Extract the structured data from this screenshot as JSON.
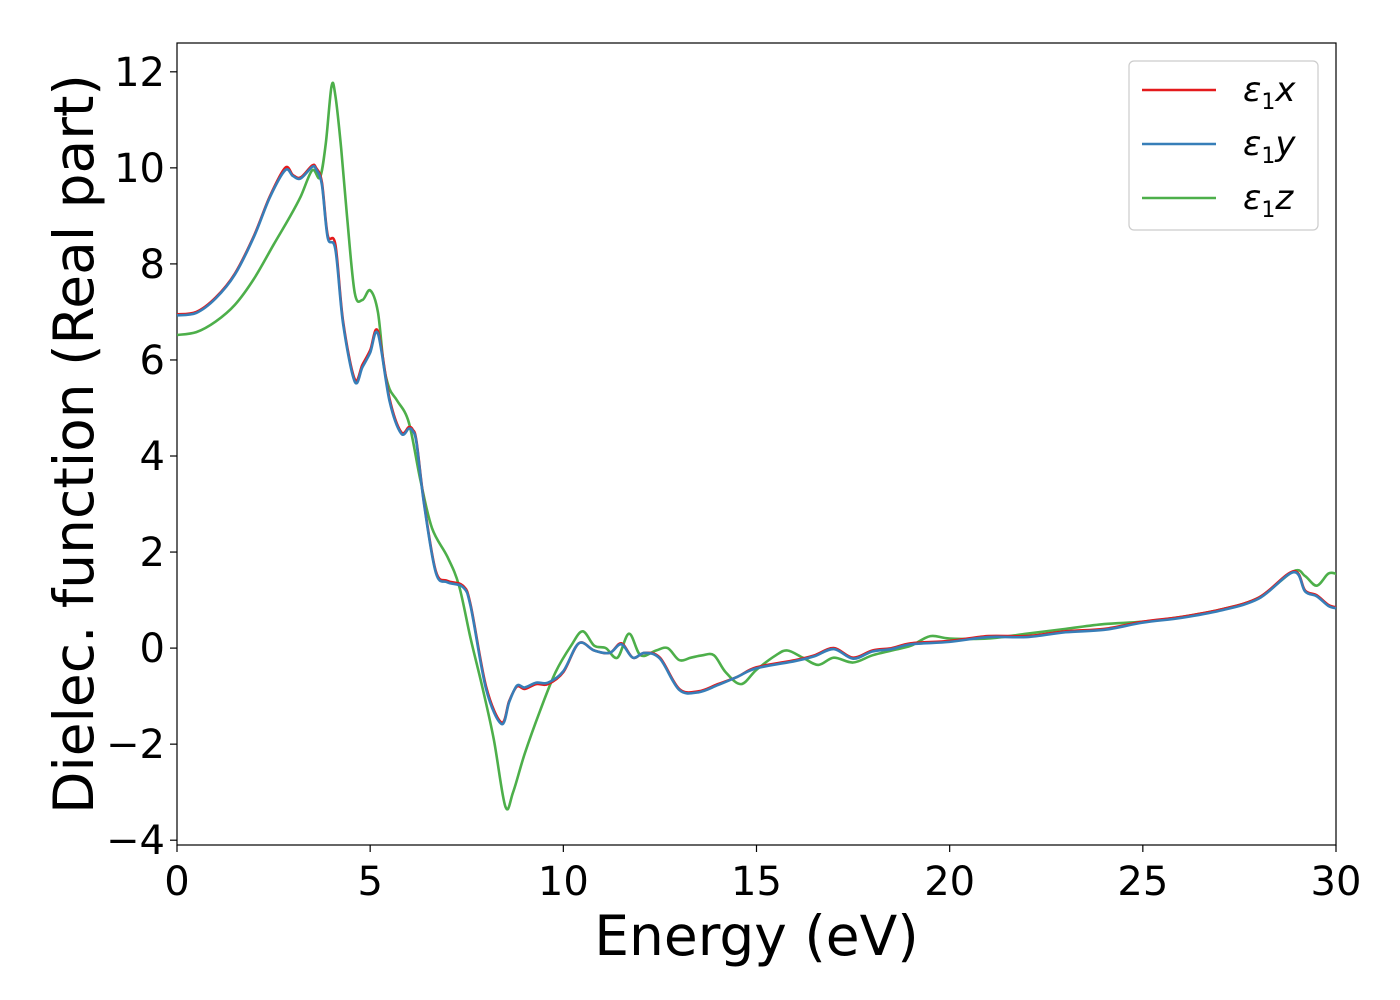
{
  "chart_data": {
    "type": "line",
    "xlabel": "Energy (eV)",
    "ylabel": "Dielec. function (Real part)",
    "xlim": [
      0,
      30
    ],
    "ylim": [
      -4.1,
      12.6
    ],
    "xticks": [
      0,
      5,
      10,
      15,
      20,
      25,
      30
    ],
    "yticks": [
      -4,
      -2,
      0,
      2,
      4,
      6,
      8,
      10,
      12
    ],
    "grid": false,
    "legend_position": "top-right",
    "series": [
      {
        "name": "ε1x",
        "symbol": "ε",
        "subscript": "1",
        "suffix": "x",
        "color": "#e41a1c",
        "x": [
          0,
          0.5,
          1.0,
          1.5,
          2.0,
          2.4,
          2.8,
          3.0,
          3.2,
          3.5,
          3.6,
          3.75,
          3.9,
          4.1,
          4.3,
          4.6,
          4.8,
          5.0,
          5.2,
          5.5,
          5.8,
          6.0,
          6.1,
          6.2,
          6.4,
          6.7,
          7.0,
          7.4,
          7.6,
          8.0,
          8.4,
          8.6,
          8.8,
          9.0,
          9.3,
          9.6,
          10.0,
          10.4,
          10.8,
          11.2,
          11.5,
          11.8,
          12.1,
          12.5,
          13.0,
          13.5,
          14.0,
          14.5,
          15.0,
          16.0,
          16.5,
          17.0,
          17.5,
          18.0,
          18.5,
          19.0,
          20.0,
          21.0,
          22.0,
          23.0,
          24.0,
          25.0,
          26.0,
          27.0,
          28.0,
          28.9,
          29.2,
          29.5,
          29.8,
          30.0
        ],
        "y": [
          6.95,
          7.0,
          7.3,
          7.8,
          8.6,
          9.4,
          10.0,
          9.85,
          9.8,
          10.05,
          10.0,
          9.7,
          8.6,
          8.4,
          6.8,
          5.6,
          5.9,
          6.2,
          6.6,
          5.2,
          4.5,
          4.6,
          4.55,
          4.3,
          3.0,
          1.6,
          1.4,
          1.3,
          0.9,
          -0.8,
          -1.55,
          -1.1,
          -0.8,
          -0.85,
          -0.75,
          -0.75,
          -0.5,
          0.1,
          -0.05,
          -0.1,
          0.1,
          -0.2,
          -0.1,
          -0.2,
          -0.85,
          -0.9,
          -0.75,
          -0.6,
          -0.4,
          -0.25,
          -0.15,
          0.0,
          -0.2,
          -0.05,
          0.0,
          0.1,
          0.15,
          0.25,
          0.25,
          0.35,
          0.4,
          0.55,
          0.65,
          0.8,
          1.05,
          1.6,
          1.2,
          1.1,
          0.9,
          0.85
        ]
      },
      {
        "name": "ε1y",
        "symbol": "ε",
        "subscript": "1",
        "suffix": "y",
        "color": "#377eb8",
        "x": [
          0,
          0.5,
          1.0,
          1.5,
          2.0,
          2.4,
          2.8,
          3.0,
          3.2,
          3.5,
          3.6,
          3.75,
          3.9,
          4.1,
          4.3,
          4.6,
          4.8,
          5.0,
          5.2,
          5.5,
          5.8,
          6.0,
          6.1,
          6.2,
          6.4,
          6.7,
          7.0,
          7.4,
          7.6,
          8.0,
          8.4,
          8.6,
          8.8,
          9.0,
          9.3,
          9.6,
          10.0,
          10.4,
          10.8,
          11.2,
          11.5,
          11.8,
          12.1,
          12.5,
          13.0,
          13.5,
          14.0,
          14.5,
          15.0,
          16.0,
          16.5,
          17.0,
          17.5,
          18.0,
          18.5,
          19.0,
          20.0,
          21.0,
          22.0,
          23.0,
          24.0,
          25.0,
          26.0,
          27.0,
          28.0,
          28.9,
          29.2,
          29.5,
          29.8,
          30.0
        ],
        "y": [
          6.93,
          6.98,
          7.28,
          7.78,
          8.58,
          9.38,
          9.95,
          9.83,
          9.78,
          10.02,
          9.97,
          9.65,
          8.55,
          8.3,
          6.75,
          5.55,
          5.85,
          6.15,
          6.55,
          5.15,
          4.47,
          4.57,
          4.52,
          4.27,
          2.97,
          1.57,
          1.37,
          1.27,
          0.87,
          -0.85,
          -1.58,
          -1.12,
          -0.78,
          -0.82,
          -0.72,
          -0.72,
          -0.48,
          0.1,
          -0.05,
          -0.1,
          0.08,
          -0.2,
          -0.1,
          -0.22,
          -0.87,
          -0.92,
          -0.77,
          -0.6,
          -0.42,
          -0.27,
          -0.17,
          -0.02,
          -0.22,
          -0.07,
          -0.02,
          0.08,
          0.13,
          0.23,
          0.23,
          0.33,
          0.38,
          0.53,
          0.63,
          0.78,
          1.03,
          1.58,
          1.18,
          1.08,
          0.88,
          0.83
        ]
      },
      {
        "name": "ε1z",
        "symbol": "ε",
        "subscript": "1",
        "suffix": "z",
        "color": "#4daf4a",
        "x": [
          0,
          0.5,
          1.0,
          1.5,
          2.0,
          2.5,
          2.9,
          3.2,
          3.5,
          3.7,
          3.85,
          4.0,
          4.1,
          4.25,
          4.4,
          4.6,
          4.8,
          5.0,
          5.2,
          5.35,
          5.5,
          5.7,
          6.0,
          6.3,
          6.6,
          7.0,
          7.3,
          7.6,
          7.9,
          8.2,
          8.5,
          8.7,
          9.0,
          9.4,
          9.8,
          10.2,
          10.5,
          10.8,
          11.1,
          11.4,
          11.7,
          12.0,
          12.4,
          12.7,
          13.0,
          13.3,
          13.6,
          13.9,
          14.2,
          14.6,
          15.0,
          15.5,
          15.8,
          16.2,
          16.6,
          17.0,
          17.5,
          18.0,
          18.5,
          19.0,
          19.5,
          20.0,
          21.0,
          22.0,
          23.0,
          24.0,
          25.0,
          26.0,
          27.0,
          28.0,
          28.9,
          29.2,
          29.5,
          29.8,
          30.0
        ],
        "y": [
          6.52,
          6.58,
          6.8,
          7.15,
          7.7,
          8.4,
          8.95,
          9.4,
          9.95,
          9.8,
          10.5,
          11.7,
          11.5,
          10.4,
          9.0,
          7.4,
          7.25,
          7.45,
          7.0,
          5.9,
          5.4,
          5.15,
          4.7,
          3.5,
          2.5,
          1.9,
          1.3,
          0.2,
          -0.8,
          -1.9,
          -3.3,
          -3.0,
          -2.2,
          -1.3,
          -0.5,
          0.05,
          0.35,
          0.05,
          0.0,
          -0.2,
          0.3,
          -0.15,
          -0.05,
          0.0,
          -0.25,
          -0.2,
          -0.15,
          -0.15,
          -0.5,
          -0.75,
          -0.45,
          -0.15,
          -0.05,
          -0.2,
          -0.35,
          -0.2,
          -0.3,
          -0.15,
          -0.05,
          0.05,
          0.25,
          0.2,
          0.2,
          0.3,
          0.4,
          0.5,
          0.55,
          0.65,
          0.8,
          1.05,
          1.6,
          1.5,
          1.3,
          1.55,
          1.55
        ]
      }
    ]
  }
}
